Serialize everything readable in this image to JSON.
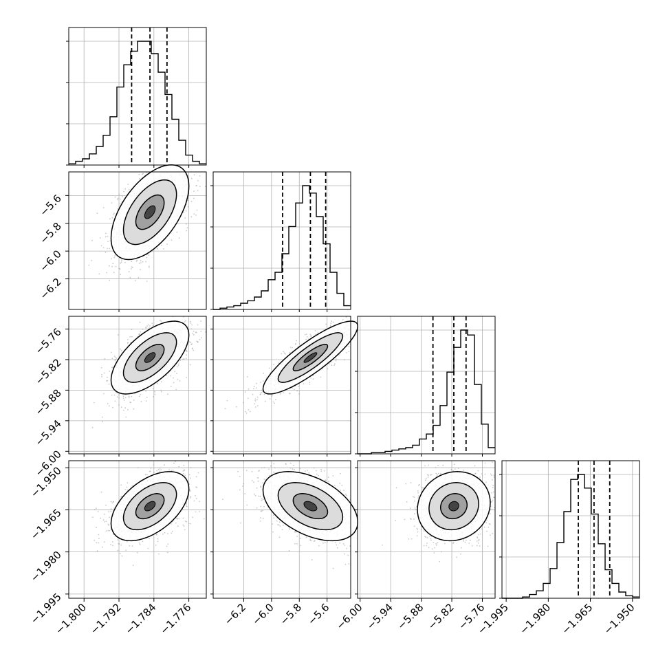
{
  "chart_data": {
    "type": "corner",
    "title": "",
    "grid": true,
    "colors": {
      "hist": "#000000",
      "quantile": "#000000",
      "scatter": "#9a9a9a",
      "grid": "#b0b0b0"
    },
    "parameters": [
      {
        "range": [
          -1.8035,
          -1.772
        ],
        "ticks": [
          -1.8,
          -1.792,
          -1.784,
          -1.776
        ],
        "tick_labels": [
          "−1.800",
          "−1.792",
          "−1.784",
          "−1.776"
        ],
        "quantiles": [
          -1.7891,
          -1.7849,
          -1.781
        ]
      },
      {
        "range": [
          -6.42,
          -5.43
        ],
        "ticks": [
          -6.2,
          -6.0,
          -5.8,
          -5.6
        ],
        "tick_labels": [
          "−6.2",
          "−6.0",
          "−5.8",
          "−5.6"
        ],
        "quantiles": [
          -5.92,
          -5.72,
          -5.61
        ]
      },
      {
        "range": [
          -6.005,
          -5.735
        ],
        "ticks": [
          -6.0,
          -5.94,
          -5.88,
          -5.82,
          -5.76
        ],
        "tick_labels": [
          "−6.00",
          "−5.94",
          "−5.88",
          "−5.82",
          "−5.76"
        ],
        "quantiles": [
          -5.857,
          -5.816,
          -5.792
        ]
      },
      {
        "range": [
          -1.9965,
          -1.9475
        ],
        "ticks": [
          -1.995,
          -1.98,
          -1.965,
          -1.95
        ],
        "tick_labels": [
          "−1.995",
          "−1.980",
          "−1.965",
          "−1.950"
        ],
        "quantiles": [
          -1.9693,
          -1.9637,
          -1.9581
        ]
      }
    ],
    "histograms": [
      [
        0.01,
        0.03,
        0.05,
        0.09,
        0.15,
        0.24,
        0.39,
        0.63,
        0.81,
        0.92,
        1.0,
        1.0,
        0.9,
        0.75,
        0.57,
        0.37,
        0.2,
        0.08,
        0.03,
        0.01
      ],
      [
        0.0,
        0.01,
        0.02,
        0.03,
        0.05,
        0.07,
        0.1,
        0.15,
        0.24,
        0.3,
        0.45,
        0.67,
        0.86,
        1.0,
        0.94,
        0.75,
        0.53,
        0.3,
        0.13,
        0.03
      ],
      [
        0.0,
        0.0,
        0.01,
        0.01,
        0.02,
        0.03,
        0.04,
        0.05,
        0.07,
        0.12,
        0.16,
        0.23,
        0.39,
        0.66,
        0.86,
        1.0,
        0.96,
        0.56,
        0.24,
        0.05
      ],
      [
        0.0,
        0.0,
        0.0,
        0.01,
        0.03,
        0.06,
        0.12,
        0.24,
        0.45,
        0.7,
        0.96,
        1.0,
        0.89,
        0.68,
        0.44,
        0.23,
        0.12,
        0.05,
        0.02,
        0.01
      ]
    ],
    "correlations": {
      "1-0": 0.55,
      "2-0": 0.62,
      "2-1": 0.86,
      "3-0": 0.5,
      "3-1": -0.46,
      "3-2": 0.1
    }
  }
}
